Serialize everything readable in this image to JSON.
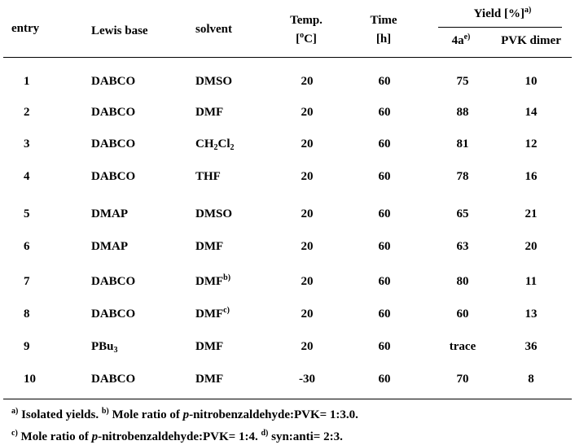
{
  "header": {
    "group": [
      {
        "text": "Yield [%]"
      },
      {
        "text": "a)",
        "style": "sup"
      }
    ],
    "columns": [
      {
        "lines": [
          "entry"
        ]
      },
      {
        "lines": [
          "Lewis base"
        ]
      },
      {
        "lines": [
          "solvent"
        ]
      },
      {
        "lines": [
          "Temp.",
          [
            {
              "text": "["
            },
            {
              "text": "o",
              "style": "sup"
            },
            {
              "text": "C]"
            }
          ]
        ]
      },
      {
        "lines": [
          "Time",
          "[h]"
        ]
      },
      {
        "lines": [
          [
            {
              "text": "4a"
            },
            {
              "text": "e)",
              "style": "sup"
            }
          ]
        ]
      },
      {
        "lines": [
          "PVK dimer"
        ]
      }
    ]
  },
  "rows": [
    [
      "1",
      "DABCO",
      "DMSO",
      "20",
      "60",
      "75",
      "10"
    ],
    [
      "2",
      "DABCO",
      "DMF",
      "20",
      "60",
      "88",
      "14"
    ],
    [
      "3",
      "DABCO",
      [
        {
          "text": "CH"
        },
        {
          "text": "2",
          "style": "sub"
        },
        {
          "text": "Cl"
        },
        {
          "text": "2",
          "style": "sub"
        }
      ],
      "20",
      "60",
      "81",
      "12"
    ],
    [
      "4",
      "DABCO",
      "THF",
      "20",
      "60",
      "78",
      "16"
    ],
    [
      "5",
      "DMAP",
      "DMSO",
      "20",
      "60",
      "65",
      "21"
    ],
    [
      "6",
      "DMAP",
      "DMF",
      "20",
      "60",
      "63",
      "20"
    ],
    [
      "7",
      "DABCO",
      [
        {
          "text": "DMF"
        },
        {
          "text": "b)",
          "style": "sup"
        }
      ],
      "20",
      "60",
      "80",
      "11"
    ],
    [
      "8",
      "DABCO",
      [
        {
          "text": "DMF"
        },
        {
          "text": "c)",
          "style": "sup"
        }
      ],
      "20",
      "60",
      "60",
      "13"
    ],
    [
      "9",
      [
        {
          "text": "PBu"
        },
        {
          "text": "3",
          "style": "sub"
        }
      ],
      "DMF",
      "20",
      "60",
      "trace",
      "36"
    ],
    [
      "10",
      "DABCO",
      "DMF",
      "-30",
      "60",
      "70",
      "8"
    ]
  ],
  "footnotes": [
    [
      {
        "text": "a)",
        "style": "sup"
      },
      {
        "text": " Isolated yields. "
      },
      {
        "text": "b)",
        "style": "sup"
      },
      {
        "text": " Mole ratio of "
      },
      {
        "text": "p",
        "style": "italic"
      },
      {
        "text": "-nitrobenzaldehyde:PVK= 1:3.0."
      }
    ],
    [
      {
        "text": "c)",
        "style": "sup"
      },
      {
        "text": " Mole ratio of "
      },
      {
        "text": "p",
        "style": "italic"
      },
      {
        "text": "-nitrobenzaldehyde:PVK= 1:4. "
      },
      {
        "text": "d)",
        "style": "sup"
      },
      {
        "text": " syn:anti= 2:3."
      }
    ]
  ]
}
